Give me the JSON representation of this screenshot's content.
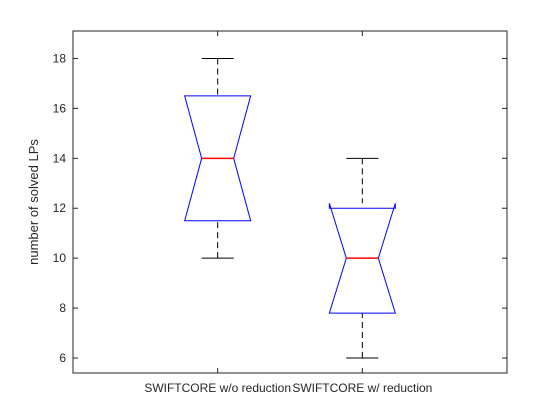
{
  "chart_data": {
    "type": "boxplot",
    "notched": true,
    "ylabel": "number of solved LPs",
    "xlabel": "",
    "ylim": [
      5.4,
      19.1
    ],
    "yticks": [
      "6",
      "8",
      "10",
      "12",
      "14",
      "16",
      "18"
    ],
    "grid": false,
    "categories": [
      "SWIFTCORE w/o reduction",
      "SWIFTCORE w/ reduction"
    ],
    "boxes": [
      {
        "whisker_low": 10,
        "q1": 11.5,
        "notch_low": 11.5,
        "median": 14,
        "notch_high": 16.5,
        "q3": 16.5,
        "whisker_high": 18
      },
      {
        "whisker_low": 6,
        "q1": 7.8,
        "notch_low": 7.8,
        "median": 10,
        "notch_high": 12.2,
        "q3": 12,
        "whisker_high": 14
      }
    ],
    "colors": {
      "box": "#0000ff",
      "median": "#ff0000",
      "whisker": "#000000",
      "axis": "#262626"
    }
  }
}
